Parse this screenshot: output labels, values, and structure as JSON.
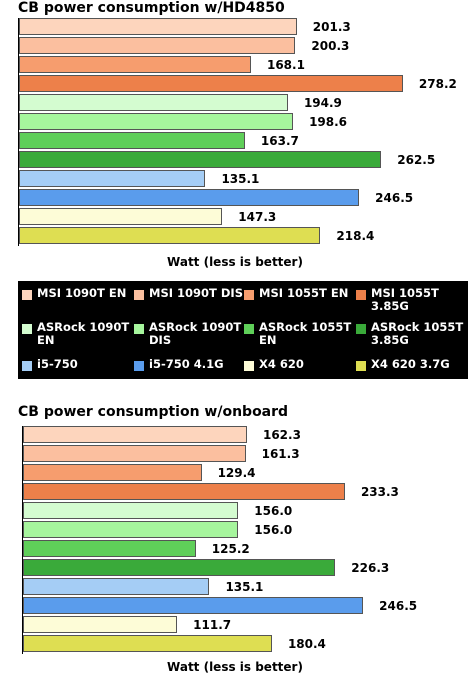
{
  "chart_data": [
    {
      "type": "bar",
      "orientation": "horizontal",
      "title": "CB power consumption w/HD4850",
      "xlabel": "Watt (less is better)",
      "ylabel": "",
      "xlim": [
        0,
        300
      ],
      "grid": false,
      "legend_position": "bottom",
      "categories": [
        "MSI 1090T EN",
        "MSI 1090T DIS",
        "MSI 1055T EN",
        "MSI 1055T 3.85G",
        "ASRock 1090T EN",
        "ASRock 1090T DIS",
        "ASRock 1055T EN",
        "ASRock 1055T 3.85G",
        "i5-750",
        "i5-750 4.1G",
        "X4 620",
        "X4 620 3.7G"
      ],
      "values": [
        201.3,
        200.3,
        168.1,
        278.2,
        194.9,
        198.6,
        163.7,
        262.5,
        135.1,
        246.5,
        147.3,
        218.4
      ],
      "value_labels": [
        "201.3",
        "200.3",
        "168.1",
        "278.2",
        "194.9",
        "198.6",
        "163.7",
        "262.5",
        "135.1",
        "246.5",
        "147.3",
        "218.4"
      ]
    },
    {
      "type": "bar",
      "orientation": "horizontal",
      "title": "CB power consumption w/onboard",
      "xlabel": "Watt (less is better)",
      "ylabel": "",
      "xlim": [
        0,
        300
      ],
      "grid": false,
      "legend_position": "none",
      "categories": [
        "MSI 1090T EN",
        "MSI 1090T DIS",
        "MSI 1055T EN",
        "MSI 1055T 3.85G",
        "ASRock 1090T EN",
        "ASRock 1090T DIS",
        "ASRock 1055T EN",
        "ASRock 1055T 3.85G",
        "i5-750",
        "i5-750 4.1G",
        "X4 620",
        "X4 620 3.7G"
      ],
      "values": [
        162.3,
        161.3,
        129.4,
        233.3,
        156.0,
        156.0,
        125.2,
        226.3,
        135.1,
        246.5,
        111.7,
        180.4
      ],
      "value_labels": [
        "162.3",
        "161.3",
        "129.4",
        "233.3",
        "156.0",
        "156.0",
        "125.2",
        "226.3",
        "135.1",
        "246.5",
        "111.7",
        "180.4"
      ]
    }
  ],
  "legend": {
    "items": [
      {
        "label": "MSI 1090T EN",
        "color": "#fdd5bd"
      },
      {
        "label": "MSI 1090T DIS",
        "color": "#fbbf9f"
      },
      {
        "label": "MSI 1055T EN",
        "color": "#f69d6e"
      },
      {
        "label": "MSI 1055T 3.85G",
        "color": "#ed804a"
      },
      {
        "label": "ASRock 1090T EN",
        "color": "#d4fcd0"
      },
      {
        "label": "ASRock 1090T DIS",
        "color": "#a6f59d"
      },
      {
        "label": "ASRock 1055T EN",
        "color": "#5fcf59"
      },
      {
        "label": "ASRock 1055T 3.85G",
        "color": "#3aaa3a"
      },
      {
        "label": "i5-750",
        "color": "#a5cdf5"
      },
      {
        "label": "i5-750 4.1G",
        "color": "#5a9cec"
      },
      {
        "label": "X4 620",
        "color": "#fdfcd7"
      },
      {
        "label": "X4 620 3.7G",
        "color": "#dede52"
      }
    ]
  }
}
